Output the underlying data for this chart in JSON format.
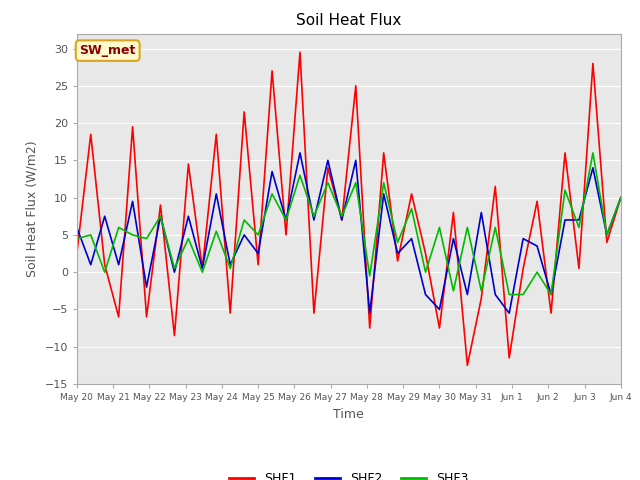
{
  "title": "Soil Heat Flux",
  "xlabel": "Time",
  "ylabel": "Soil Heat Flux (W/m2)",
  "ylim": [
    -15,
    32
  ],
  "yticks": [
    -15,
    -10,
    -5,
    0,
    5,
    10,
    15,
    20,
    25,
    30
  ],
  "annotation_text": "SW_met",
  "annotation_color": "#8B0000",
  "annotation_bg": "#FFFACD",
  "annotation_border": "#DAA520",
  "shf1_color": "#FF0000",
  "shf2_color": "#0000CC",
  "shf3_color": "#00BB00",
  "fig_bg": "#FFFFFF",
  "plot_bg": "#E8E8E8",
  "x_labels": [
    "May 20",
    "May 21",
    "May 22",
    "May 23",
    "May 24",
    "May 25",
    "May 26",
    "May 27",
    "May 28",
    "May 29",
    "May 30",
    "May 31",
    "Jun 1",
    "Jun 2",
    "Jun 3",
    "Jun 4"
  ],
  "shf1": [
    2.5,
    18.5,
    1.0,
    -6.0,
    19.5,
    -6.0,
    9.0,
    -8.5,
    14.5,
    0.5,
    18.5,
    -5.5,
    21.5,
    1.0,
    27.0,
    5.0,
    29.5,
    -5.5,
    14.0,
    7.0,
    25.0,
    -7.5,
    16.0,
    1.5,
    10.5,
    2.5,
    -7.5,
    8.0,
    -12.5,
    -3.5,
    11.5,
    -11.5,
    0.5,
    9.5,
    -5.5,
    16.0,
    0.5,
    28.0,
    4.0,
    10.0
  ],
  "shf2": [
    6.0,
    1.0,
    7.5,
    1.0,
    9.5,
    -2.0,
    7.5,
    0.0,
    7.5,
    0.5,
    10.5,
    1.0,
    5.0,
    2.5,
    13.5,
    7.0,
    16.0,
    7.0,
    15.0,
    7.0,
    15.0,
    -5.5,
    10.5,
    2.5,
    4.5,
    -3.0,
    -5.0,
    4.5,
    -3.0,
    8.0,
    -3.0,
    -5.5,
    4.5,
    3.5,
    -3.0,
    7.0,
    7.0,
    14.0,
    5.0,
    10.0
  ],
  "shf3": [
    4.5,
    5.0,
    0.0,
    6.0,
    5.0,
    4.5,
    7.5,
    0.5,
    4.5,
    0.0,
    5.5,
    0.5,
    7.0,
    5.0,
    10.5,
    7.0,
    13.0,
    7.5,
    12.0,
    7.5,
    12.0,
    -0.5,
    12.0,
    4.0,
    8.5,
    0.0,
    6.0,
    -2.5,
    6.0,
    -2.5,
    6.0,
    -3.0,
    -3.0,
    0.0,
    -3.0,
    11.0,
    6.0,
    16.0,
    5.0,
    10.0
  ],
  "line_width": 1.2
}
